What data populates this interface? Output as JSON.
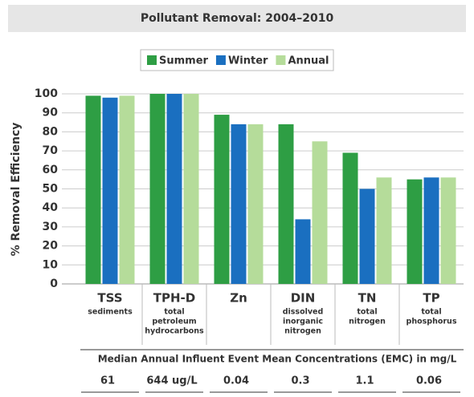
{
  "chart_data": {
    "type": "bar",
    "title": "Pollutant Removal: 2004–2010",
    "y_label": "% Removal Efficiency",
    "categories": [
      "TSS",
      "TPH-D",
      "Zn",
      "DIN",
      "TN",
      "TP"
    ],
    "subcategories": [
      [
        "sediments"
      ],
      [
        "total",
        "petroleum",
        "hydrocarbons"
      ],
      null,
      [
        "dissolved",
        "inorganic",
        "nitrogen"
      ],
      [
        "total",
        "nitrogen"
      ],
      [
        "total",
        "phosphorus"
      ]
    ],
    "series": [
      {
        "name": "Summer",
        "color": "#2e9e44",
        "values": [
          99,
          100,
          89,
          84,
          69,
          55
        ]
      },
      {
        "name": "Winter",
        "color": "#1a6fc0",
        "values": [
          98,
          100,
          84,
          34,
          50,
          56
        ]
      },
      {
        "name": "Annual",
        "color": "#b5dc9a",
        "values": [
          99,
          100,
          84,
          75,
          56,
          56
        ]
      }
    ],
    "ylim": [
      0,
      100
    ],
    "yticks": [
      0,
      10,
      20,
      30,
      40,
      50,
      60,
      70,
      80,
      90,
      100
    ],
    "grid": true,
    "legend": "top",
    "table": {
      "title": "Median Annual Influent Event Mean Concentrations (EMC) in mg/L",
      "values": [
        "61",
        "644 ug/L",
        "0.04",
        "0.3",
        "1.1",
        "0.06"
      ]
    }
  }
}
